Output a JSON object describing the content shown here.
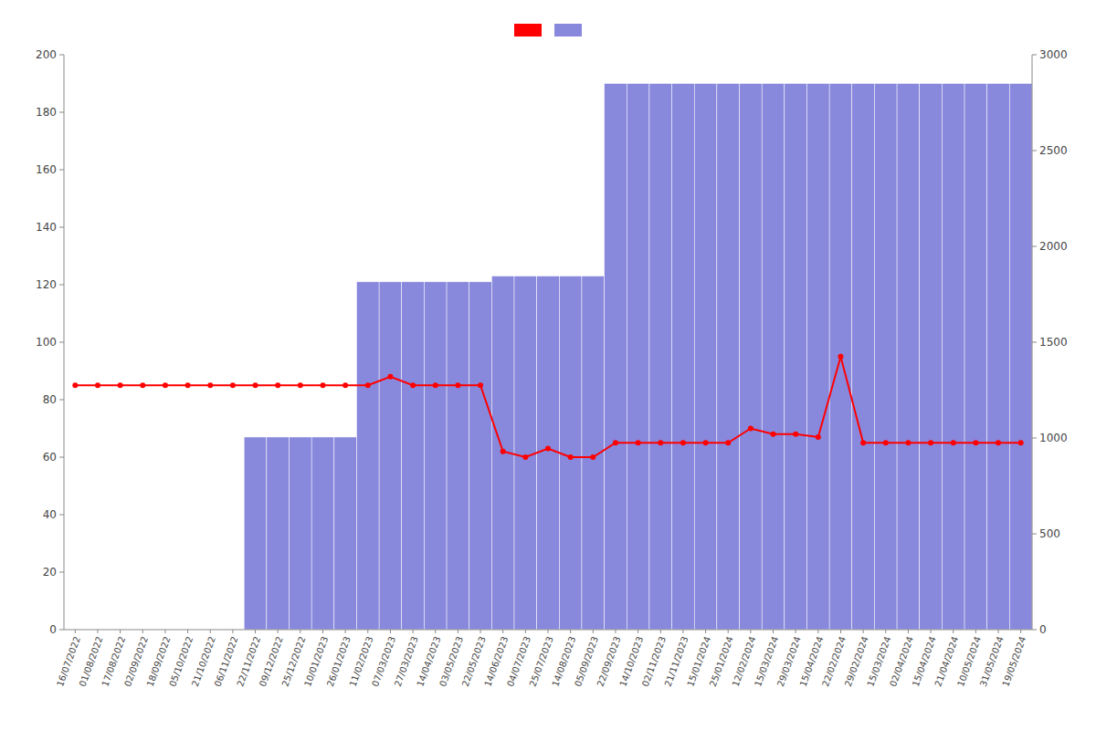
{
  "chart_data": {
    "type": "bar",
    "categories": [
      "16/07/2022",
      "01/08/2022",
      "17/08/2022",
      "02/09/2022",
      "18/09/2022",
      "05/10/2022",
      "21/10/2022",
      "06/11/2022",
      "22/11/2022",
      "09/12/2022",
      "25/12/2022",
      "10/01/2023",
      "26/01/2023",
      "11/02/2023",
      "07/03/2023",
      "27/03/2023",
      "14/04/2023",
      "03/05/2023",
      "22/05/2023",
      "14/06/2023",
      "04/07/2023",
      "25/07/2023",
      "14/08/2023",
      "05/09/2023",
      "22/09/2023",
      "14/10/2023",
      "02/11/2023",
      "21/11/2023",
      "15/01/2024",
      "25/01/2024",
      "12/02/2024",
      "15/03/2024",
      "29/03/2024",
      "15/04/2024",
      "22/02/2024",
      "29/02/2024",
      "15/03/2024",
      "02/04/2024",
      "15/04/2024",
      "21/04/2024",
      "10/05/2024",
      "31/05/2024",
      "19/05/2024"
    ],
    "series": [
      {
        "type": "bar",
        "color": "#8888dd",
        "values": [
          0,
          0,
          0,
          0,
          0,
          0,
          0,
          0,
          67,
          67,
          67,
          67,
          67,
          121,
          121,
          121,
          121,
          121,
          121,
          123,
          123,
          123,
          123,
          123,
          190,
          190,
          190,
          190,
          190,
          190,
          190,
          190,
          190,
          190,
          190,
          190,
          190,
          190,
          190,
          190,
          190,
          190,
          190
        ]
      },
      {
        "type": "line",
        "color": "#ff0000",
        "marker": "circle",
        "values": [
          85,
          85,
          85,
          85,
          85,
          85,
          85,
          85,
          85,
          85,
          85,
          85,
          85,
          85,
          88,
          85,
          85,
          85,
          85,
          62,
          60,
          63,
          60,
          60,
          65,
          65,
          65,
          65,
          65,
          65,
          70,
          68,
          68,
          67,
          95,
          65,
          65,
          65,
          65,
          65,
          65,
          65,
          65
        ]
      }
    ],
    "ylim": [
      0,
      200
    ],
    "yticks": [
      0,
      20,
      40,
      60,
      80,
      100,
      120,
      140,
      160,
      180,
      200
    ],
    "y2lim": [
      0,
      3000
    ],
    "y2ticks": [
      0,
      500,
      1000,
      1500,
      2000,
      2500,
      3000
    ],
    "grid": false,
    "legend": "top"
  }
}
